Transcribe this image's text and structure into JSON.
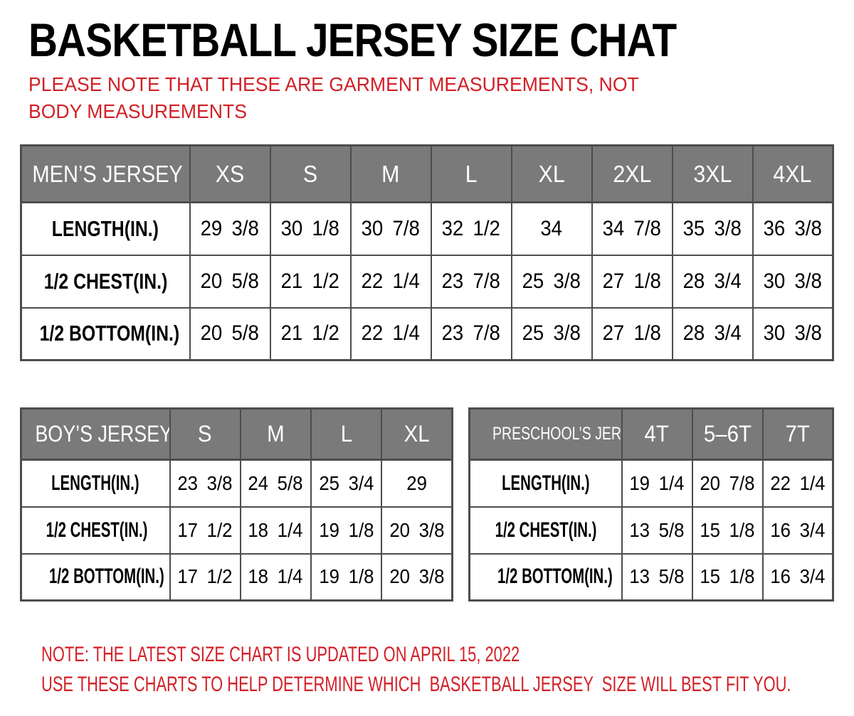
{
  "title": "BASKETBALL JERSEY SIZE CHAT",
  "top_note": "PLEASE NOTE THAT THESE ARE GARMENT MEASUREMENTS, NOT BODY MEASUREMENTS",
  "tables": {
    "mens": {
      "header": "MEN’S JERSEY",
      "sizes": [
        "XS",
        "S",
        "M",
        "L",
        "XL",
        "2XL",
        "3XL",
        "4XL"
      ],
      "rows": [
        {
          "label": "LENGTH(IN.)",
          "values": [
            "29 3/8",
            "30 1/8",
            "30 7/8",
            "32 1/2",
            "34",
            "34 7/8",
            "35 3/8",
            "36 3/8"
          ]
        },
        {
          "label": "1/2 CHEST(IN.)",
          "values": [
            "20 5/8",
            "21 1/2",
            "22 1/4",
            "23 7/8",
            "25 3/8",
            "27 1/8",
            "28 3/4",
            "30 3/8"
          ]
        },
        {
          "label": "1/2 BOTTOM(IN.)",
          "values": [
            "20 5/8",
            "21 1/2",
            "22 1/4",
            "23 7/8",
            "25 3/8",
            "27 1/8",
            "28 3/4",
            "30 3/8"
          ]
        }
      ]
    },
    "boys": {
      "header": "BOY’S JERSEY",
      "sizes": [
        "S",
        "M",
        "L",
        "XL"
      ],
      "rows": [
        {
          "label": "LENGTH(IN.)",
          "values": [
            "23 3/8",
            "24 5/8",
            "25 3/4",
            "29"
          ]
        },
        {
          "label": "1/2 CHEST(IN.)",
          "values": [
            "17 1/2",
            "18 1/4",
            "19 1/8",
            "20 3/8"
          ]
        },
        {
          "label": "1/2 BOTTOM(IN.)",
          "values": [
            "17 1/2",
            "18 1/4",
            "19 1/8",
            "20 3/8"
          ]
        }
      ]
    },
    "preschool": {
      "header": "PRESCHOOL’S JERSEY",
      "sizes": [
        "4T",
        "5–6T",
        "7T"
      ],
      "rows": [
        {
          "label": "LENGTH(IN.)",
          "values": [
            "19 1/4",
            "20 7/8",
            "22 1/4"
          ]
        },
        {
          "label": "1/2 CHEST(IN.)",
          "values": [
            "13 5/8",
            "15 1/8",
            "16 3/4"
          ]
        },
        {
          "label": "1/2 BOTTOM(IN.)",
          "values": [
            "13 5/8",
            "15 1/8",
            "16 3/4"
          ]
        }
      ]
    }
  },
  "bottom_notes": [
    "NOTE: THE LATEST SIZE CHART IS UPDATED ON APRIL 15, 2022",
    "USE THESE CHARTS TO HELP DETERMINE WHICH  BASKETBALL JERSEY  SIZE WILL BEST FIT YOU."
  ],
  "colors": {
    "header_bg": "#7a7a7a",
    "border": "#4d4d4d",
    "note_red": "#d31f26",
    "header_text": "#ffffff",
    "body_text": "#000000"
  }
}
